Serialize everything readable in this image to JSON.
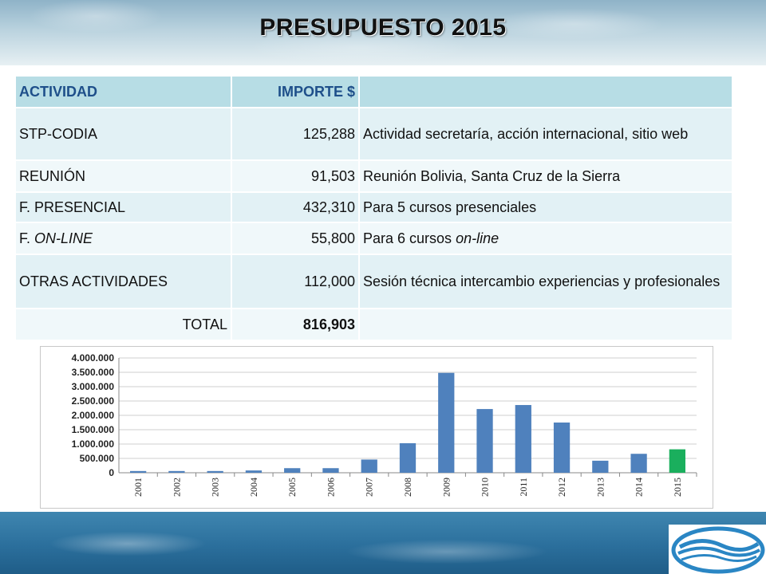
{
  "title": "PRESUPUESTO 2015",
  "table": {
    "headers": [
      "ACTIVIDAD",
      "IMPORTE $",
      ""
    ],
    "rows": [
      {
        "actividad": "STP-CODIA",
        "importe": "125,288",
        "desc": "Actividad secretaría, acción internacional, sitio web"
      },
      {
        "actividad": "REUNIÓN",
        "importe": "91,503",
        "desc": "Reunión Bolivia, Santa Cruz de la Sierra"
      },
      {
        "actividad": "F. PRESENCIAL",
        "importe": "432,310",
        "desc": "Para 5 cursos presenciales"
      },
      {
        "actividad_prefix": "F. ",
        "actividad_em": "ON-LINE",
        "importe": "55,800",
        "desc_prefix": "Para 6 cursos ",
        "desc_em": "on-line"
      },
      {
        "actividad": "OTRAS ACTIVIDADES",
        "importe": "112,000",
        "desc": "Sesión técnica intercambio experiencias y profesionales"
      }
    ],
    "total_label": "TOTAL",
    "total_value": "816,903"
  },
  "chart_data": {
    "type": "bar",
    "categories": [
      "2001",
      "2002",
      "2003",
      "2004",
      "2005",
      "2006",
      "2007",
      "2008",
      "2009",
      "2010",
      "2011",
      "2012",
      "2013",
      "2014",
      "2015"
    ],
    "values": [
      60000,
      60000,
      60000,
      80000,
      160000,
      160000,
      460000,
      1030000,
      3480000,
      2220000,
      2360000,
      1750000,
      420000,
      660000,
      816903
    ],
    "highlight_index": 14,
    "ylim": [
      0,
      4000000
    ],
    "yticks": [
      0,
      500000,
      1000000,
      1500000,
      2000000,
      2500000,
      3000000,
      3500000,
      4000000
    ],
    "ytick_labels": [
      "0",
      "500.000",
      "1.000.000",
      "1.500.000",
      "2.000.000",
      "2.500.000",
      "3.000.000",
      "3.500.000",
      "4.000.000"
    ],
    "grid": true,
    "bar_color": "#4f81bd",
    "highlight_color": "#1aaf5d",
    "title": "",
    "xlabel": "",
    "ylabel": ""
  }
}
